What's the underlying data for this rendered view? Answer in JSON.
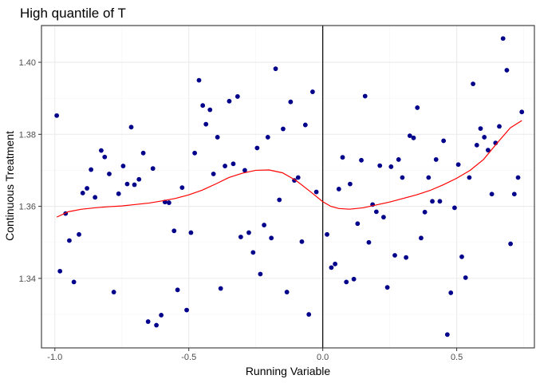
{
  "chart_data": {
    "type": "scatter",
    "title": "High quantile of T",
    "xlabel": "Running Variable",
    "ylabel": "Continuous Treatment",
    "xlim": [
      -1.05,
      0.79
    ],
    "ylim": [
      1.3207,
      1.4102
    ],
    "x_ticks": [
      -1.0,
      -0.5,
      0.0,
      0.5
    ],
    "x_tick_labels": [
      "-1.0",
      "-0.5",
      "0.0",
      "0.5"
    ],
    "y_ticks": [
      1.34,
      1.36,
      1.38,
      1.4
    ],
    "y_tick_labels": [
      "1.34",
      "1.36",
      "1.38",
      "1.40"
    ],
    "grid": true,
    "cutoff": 0.0,
    "colors": {
      "points": "#00008b",
      "fit_line": "#ff0000",
      "cutoff_line": "#000000",
      "grid_major": "#ebebeb",
      "grid_minor": "#f5f5f5",
      "panel_border": "#333333"
    },
    "points": [
      [
        -0.993,
        1.3852
      ],
      [
        -0.981,
        1.342
      ],
      [
        -0.96,
        1.358
      ],
      [
        -0.946,
        1.3505
      ],
      [
        -0.929,
        1.339
      ],
      [
        -0.91,
        1.3522
      ],
      [
        -0.896,
        1.3637
      ],
      [
        -0.88,
        1.365
      ],
      [
        -0.865,
        1.3702
      ],
      [
        -0.85,
        1.3625
      ],
      [
        -0.827,
        1.3755
      ],
      [
        -0.814,
        1.3737
      ],
      [
        -0.797,
        1.369
      ],
      [
        -0.78,
        1.3362
      ],
      [
        -0.762,
        1.3635
      ],
      [
        -0.745,
        1.3712
      ],
      [
        -0.73,
        1.3662
      ],
      [
        -0.715,
        1.382
      ],
      [
        -0.703,
        1.366
      ],
      [
        -0.686,
        1.3675
      ],
      [
        -0.67,
        1.3748
      ],
      [
        -0.652,
        1.328
      ],
      [
        -0.634,
        1.3705
      ],
      [
        -0.621,
        1.327
      ],
      [
        -0.603,
        1.3298
      ],
      [
        -0.589,
        1.3612
      ],
      [
        -0.574,
        1.361
      ],
      [
        -0.555,
        1.3532
      ],
      [
        -0.542,
        1.3368
      ],
      [
        -0.525,
        1.3652
      ],
      [
        -0.508,
        1.3312
      ],
      [
        -0.492,
        1.3527
      ],
      [
        -0.478,
        1.3748
      ],
      [
        -0.462,
        1.395
      ],
      [
        -0.448,
        1.388
      ],
      [
        -0.436,
        1.3828
      ],
      [
        -0.421,
        1.3868
      ],
      [
        -0.408,
        1.369
      ],
      [
        -0.393,
        1.3792
      ],
      [
        -0.381,
        1.3372
      ],
      [
        -0.365,
        1.3712
      ],
      [
        -0.349,
        1.3892
      ],
      [
        -0.334,
        1.3718
      ],
      [
        -0.318,
        1.3905
      ],
      [
        -0.306,
        1.3515
      ],
      [
        -0.291,
        1.37
      ],
      [
        -0.276,
        1.3527
      ],
      [
        -0.26,
        1.3472
      ],
      [
        -0.245,
        1.3762
      ],
      [
        -0.233,
        1.3412
      ],
      [
        -0.219,
        1.3548
      ],
      [
        -0.205,
        1.3792
      ],
      [
        -0.192,
        1.3512
      ],
      [
        -0.176,
        1.3982
      ],
      [
        -0.162,
        1.3618
      ],
      [
        -0.148,
        1.3815
      ],
      [
        -0.134,
        1.3362
      ],
      [
        -0.12,
        1.389
      ],
      [
        -0.106,
        1.3672
      ],
      [
        -0.092,
        1.368
      ],
      [
        -0.078,
        1.3502
      ],
      [
        -0.065,
        1.3826
      ],
      [
        -0.052,
        1.33
      ],
      [
        -0.038,
        1.3918
      ],
      [
        -0.024,
        1.364
      ],
      [
        0.016,
        1.3522
      ],
      [
        0.032,
        1.343
      ],
      [
        0.046,
        1.344
      ],
      [
        0.06,
        1.3648
      ],
      [
        0.074,
        1.3736
      ],
      [
        0.088,
        1.339
      ],
      [
        0.102,
        1.3662
      ],
      [
        0.116,
        1.3398
      ],
      [
        0.13,
        1.3552
      ],
      [
        0.144,
        1.3728
      ],
      [
        0.158,
        1.3906
      ],
      [
        0.172,
        1.35
      ],
      [
        0.186,
        1.3605
      ],
      [
        0.2,
        1.3585
      ],
      [
        0.213,
        1.3713
      ],
      [
        0.227,
        1.357
      ],
      [
        0.241,
        1.3375
      ],
      [
        0.255,
        1.371
      ],
      [
        0.269,
        1.3464
      ],
      [
        0.283,
        1.373
      ],
      [
        0.297,
        1.368
      ],
      [
        0.311,
        1.3458
      ],
      [
        0.325,
        1.3796
      ],
      [
        0.339,
        1.379
      ],
      [
        0.353,
        1.3874
      ],
      [
        0.367,
        1.3512
      ],
      [
        0.381,
        1.3584
      ],
      [
        0.395,
        1.368
      ],
      [
        0.409,
        1.3614
      ],
      [
        0.423,
        1.373
      ],
      [
        0.437,
        1.3614
      ],
      [
        0.451,
        1.3782
      ],
      [
        0.465,
        1.3244
      ],
      [
        0.478,
        1.336
      ],
      [
        0.492,
        1.3596
      ],
      [
        0.506,
        1.3716
      ],
      [
        0.519,
        1.346
      ],
      [
        0.533,
        1.3402
      ],
      [
        0.547,
        1.368
      ],
      [
        0.561,
        1.394
      ],
      [
        0.575,
        1.377
      ],
      [
        0.589,
        1.3816
      ],
      [
        0.603,
        1.3792
      ],
      [
        0.617,
        1.3756
      ],
      [
        0.631,
        1.3634
      ],
      [
        0.645,
        1.3776
      ],
      [
        0.659,
        1.3822
      ],
      [
        0.673,
        1.4066
      ],
      [
        0.687,
        1.3978
      ],
      [
        0.701,
        1.3496
      ],
      [
        0.715,
        1.3634
      ],
      [
        0.729,
        1.368
      ],
      [
        0.743,
        1.3862
      ]
    ],
    "fit_left": [
      [
        -0.993,
        1.357
      ],
      [
        -0.95,
        1.3585
      ],
      [
        -0.9,
        1.3592
      ],
      [
        -0.85,
        1.3596
      ],
      [
        -0.8,
        1.3599
      ],
      [
        -0.75,
        1.3601
      ],
      [
        -0.7,
        1.3605
      ],
      [
        -0.65,
        1.3609
      ],
      [
        -0.6,
        1.3615
      ],
      [
        -0.55,
        1.3622
      ],
      [
        -0.5,
        1.3632
      ],
      [
        -0.45,
        1.3645
      ],
      [
        -0.4,
        1.3662
      ],
      [
        -0.35,
        1.368
      ],
      [
        -0.3,
        1.3692
      ],
      [
        -0.25,
        1.37
      ],
      [
        -0.2,
        1.3701
      ],
      [
        -0.15,
        1.3693
      ],
      [
        -0.1,
        1.3672
      ],
      [
        -0.05,
        1.3643
      ],
      [
        0.0,
        1.3613
      ]
    ],
    "fit_right": [
      [
        0.0,
        1.3613
      ],
      [
        0.03,
        1.36
      ],
      [
        0.06,
        1.3594
      ],
      [
        0.1,
        1.3592
      ],
      [
        0.15,
        1.3596
      ],
      [
        0.2,
        1.3604
      ],
      [
        0.25,
        1.3612
      ],
      [
        0.3,
        1.3622
      ],
      [
        0.35,
        1.3632
      ],
      [
        0.4,
        1.3644
      ],
      [
        0.45,
        1.366
      ],
      [
        0.5,
        1.3678
      ],
      [
        0.55,
        1.37
      ],
      [
        0.6,
        1.373
      ],
      [
        0.65,
        1.3775
      ],
      [
        0.7,
        1.3818
      ],
      [
        0.743,
        1.3838
      ]
    ]
  }
}
